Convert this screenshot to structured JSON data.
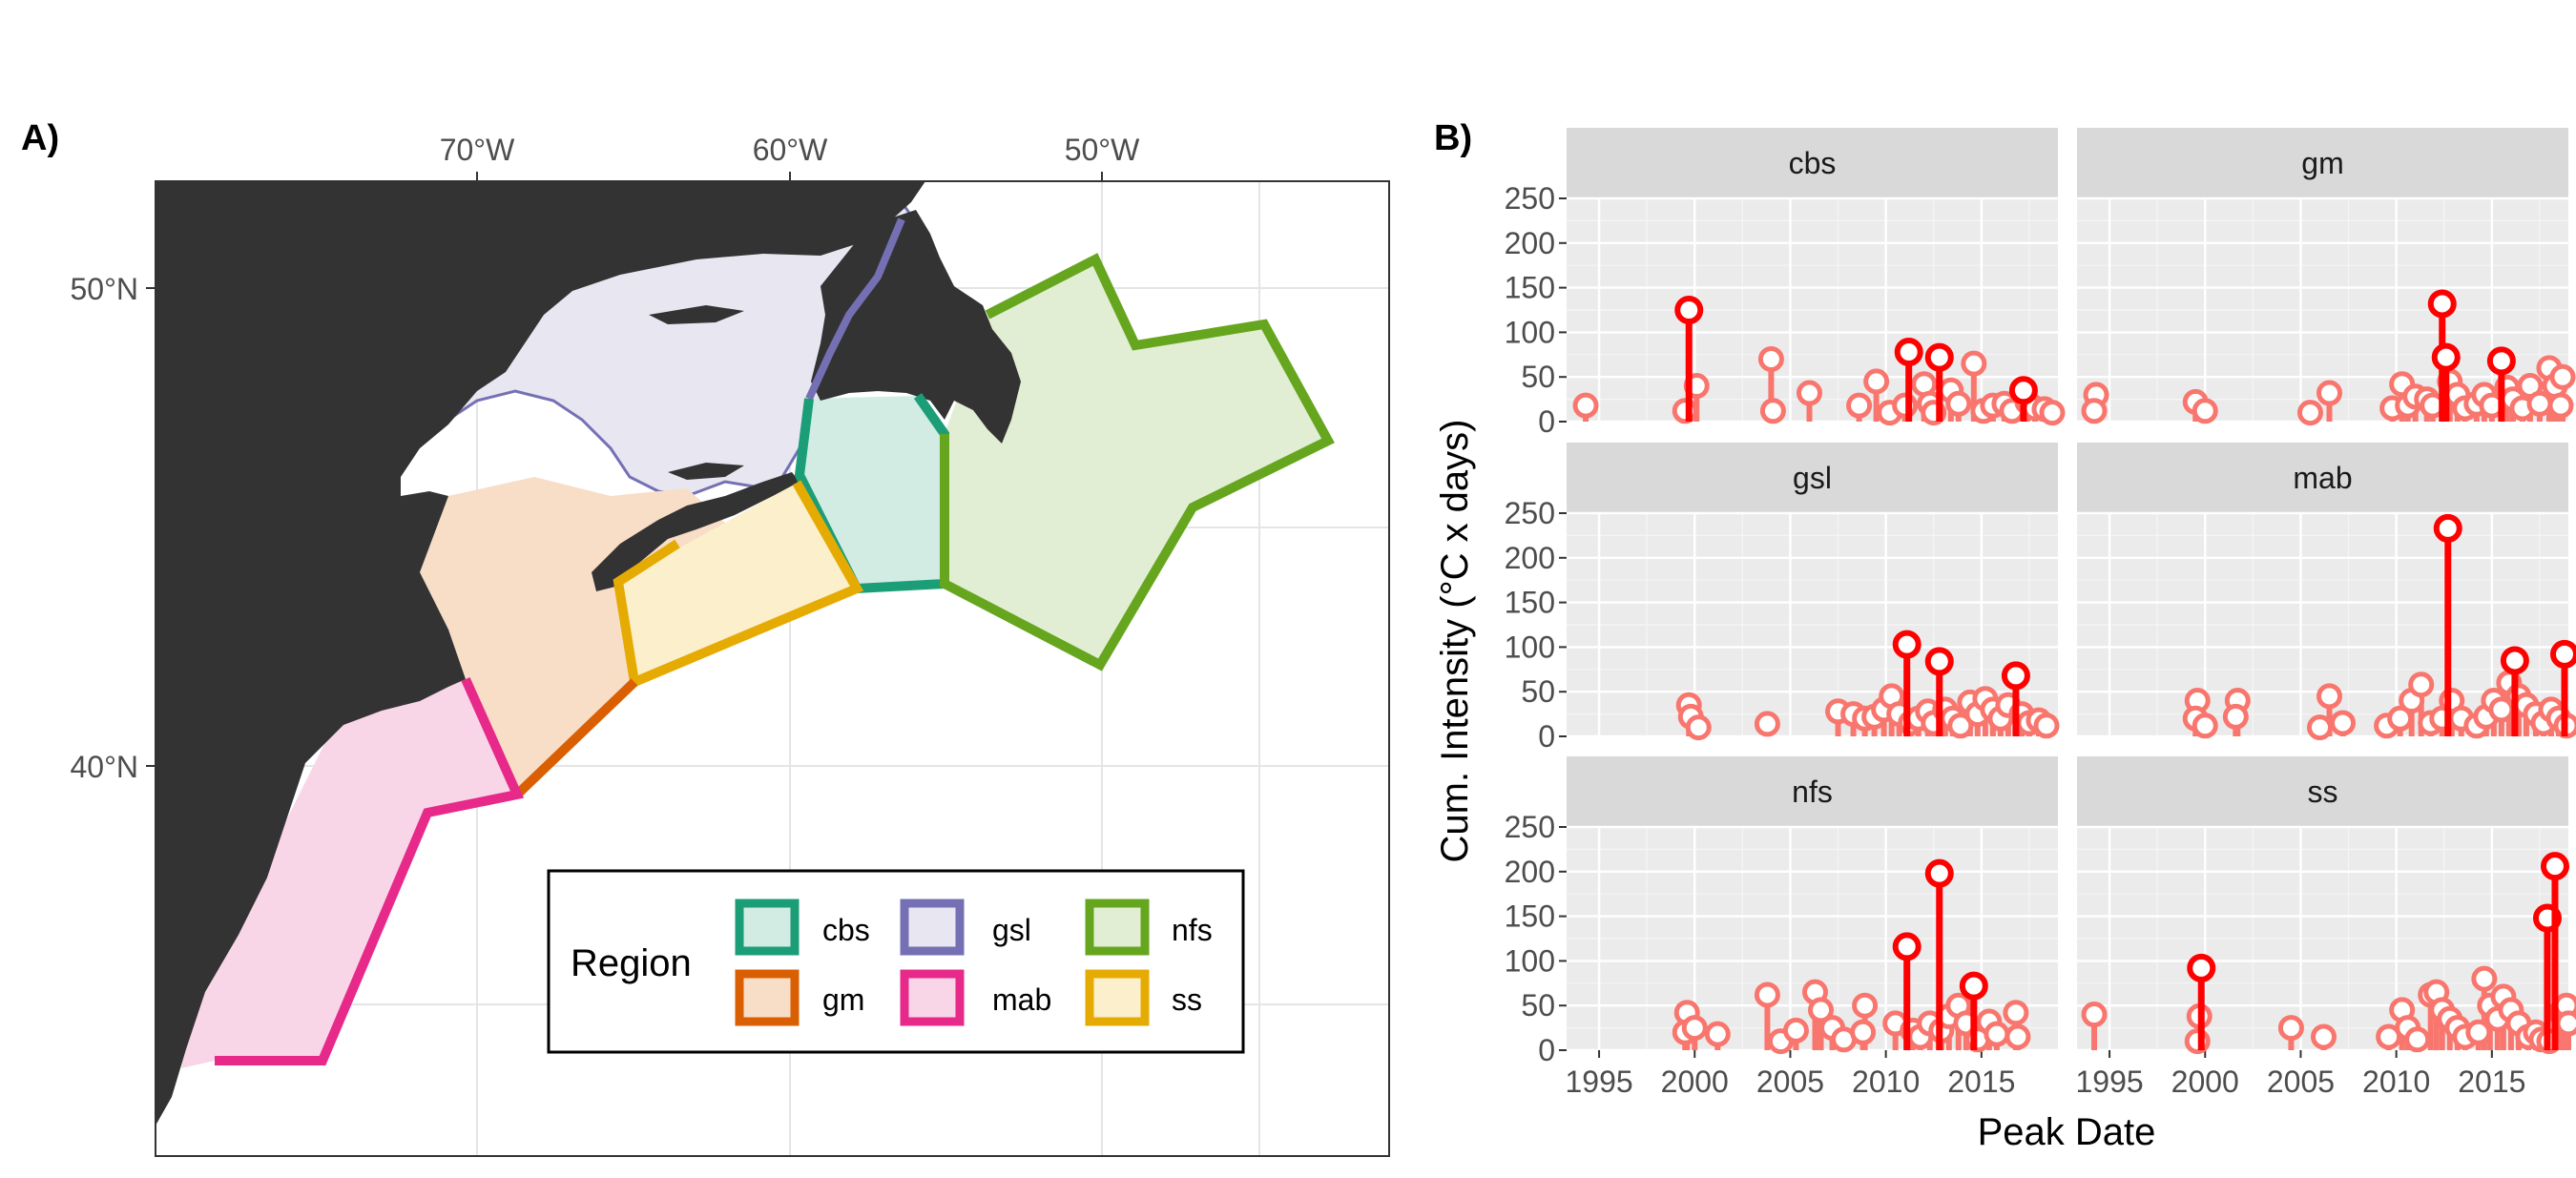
{
  "panel_a": {
    "label": "A)",
    "lon_ticks": [
      "70°W",
      "60°W",
      "50°W"
    ],
    "lat_ticks": [
      "50°N",
      "40°N"
    ],
    "legend": {
      "title": "Region",
      "items": [
        {
          "key": "cbs",
          "label": "cbs",
          "color": "#1B9E77"
        },
        {
          "key": "gsl",
          "label": "gsl",
          "color": "#7570B3"
        },
        {
          "key": "nfs",
          "label": "nfs",
          "color": "#66A61E"
        },
        {
          "key": "gm",
          "label": "gm",
          "color": "#D95F02"
        },
        {
          "key": "mab",
          "label": "mab",
          "color": "#E7298A"
        },
        {
          "key": "ss",
          "label": "ss",
          "color": "#E6AB02"
        }
      ]
    }
  },
  "panel_b": {
    "label": "B)",
    "ylabel": "Cum. Intensity (°C x days)",
    "xlabel": "Peak Date",
    "y_ticks": [
      "0",
      "50",
      "100",
      "150",
      "200",
      "250"
    ],
    "x_ticks": [
      "1995",
      "2000",
      "2005",
      "2010",
      "2015"
    ],
    "facets": [
      "cbs",
      "gm",
      "gsl",
      "mab",
      "nfs",
      "ss"
    ]
  },
  "colors": {
    "land": "#333333",
    "major_event": "#FF0000",
    "minor_event": "#F8766D",
    "facet_strip": "#D9D9D9",
    "facet_bg": "#EBEBEB"
  },
  "chart_data": {
    "type": "scatter",
    "title": "",
    "xlabel": "Peak Date",
    "ylabel": "Cum. Intensity (°C x days)",
    "xlim": [
      1993.3,
      2019
    ],
    "ylim": [
      0,
      250
    ],
    "note": "lollipop points per region facet; major = highlighted events",
    "series": [
      {
        "name": "cbs",
        "major": [
          [
            1999.7,
            125
          ],
          [
            2011.2,
            78
          ],
          [
            2012.8,
            72
          ],
          [
            2017.2,
            35
          ]
        ],
        "minor": [
          [
            1994.3,
            18
          ],
          [
            1999.5,
            12
          ],
          [
            2000.1,
            40
          ],
          [
            2004.0,
            70
          ],
          [
            2004.1,
            12
          ],
          [
            2006.0,
            32
          ],
          [
            2008.6,
            18
          ],
          [
            2009.5,
            45
          ],
          [
            2010.2,
            10
          ],
          [
            2011.0,
            18
          ],
          [
            2012.0,
            42
          ],
          [
            2012.3,
            20
          ],
          [
            2012.5,
            10
          ],
          [
            2013.4,
            35
          ],
          [
            2013.8,
            20
          ],
          [
            2014.6,
            65
          ],
          [
            2015.1,
            12
          ],
          [
            2015.6,
            18
          ],
          [
            2016.2,
            20
          ],
          [
            2016.6,
            12
          ],
          [
            2017.4,
            22
          ],
          [
            2017.8,
            15
          ],
          [
            2018.3,
            14
          ],
          [
            2018.7,
            10
          ]
        ]
      },
      {
        "name": "gm",
        "major": [
          [
            2012.4,
            132
          ],
          [
            2012.6,
            72
          ],
          [
            2015.5,
            68
          ]
        ],
        "minor": [
          [
            1994.3,
            30
          ],
          [
            1994.2,
            12
          ],
          [
            1999.5,
            22
          ],
          [
            2000.0,
            12
          ],
          [
            2005.5,
            10
          ],
          [
            2006.5,
            32
          ],
          [
            2009.8,
            15
          ],
          [
            2010.3,
            42
          ],
          [
            2010.6,
            18
          ],
          [
            2011.0,
            28
          ],
          [
            2011.6,
            25
          ],
          [
            2011.9,
            18
          ],
          [
            2012.8,
            45
          ],
          [
            2013.2,
            30
          ],
          [
            2013.6,
            15
          ],
          [
            2014.2,
            20
          ],
          [
            2014.6,
            30
          ],
          [
            2015.0,
            18
          ],
          [
            2015.8,
            38
          ],
          [
            2016.1,
            25
          ],
          [
            2016.6,
            15
          ],
          [
            2017.0,
            40
          ],
          [
            2017.5,
            20
          ],
          [
            2018.0,
            60
          ],
          [
            2018.3,
            40
          ],
          [
            2018.7,
            50
          ],
          [
            2018.6,
            18
          ]
        ]
      },
      {
        "name": "gsl",
        "major": [
          [
            2011.1,
            103
          ],
          [
            2012.8,
            84
          ],
          [
            2016.8,
            68
          ]
        ],
        "minor": [
          [
            1999.7,
            35
          ],
          [
            1999.8,
            22
          ],
          [
            2000.2,
            10
          ],
          [
            2003.8,
            14
          ],
          [
            2007.5,
            28
          ],
          [
            2008.3,
            25
          ],
          [
            2008.9,
            20
          ],
          [
            2009.4,
            22
          ],
          [
            2009.9,
            30
          ],
          [
            2010.3,
            45
          ],
          [
            2010.7,
            25
          ],
          [
            2011.3,
            15
          ],
          [
            2011.7,
            20
          ],
          [
            2012.2,
            28
          ],
          [
            2012.5,
            15
          ],
          [
            2013.1,
            30
          ],
          [
            2013.5,
            20
          ],
          [
            2013.9,
            12
          ],
          [
            2014.4,
            38
          ],
          [
            2014.8,
            25
          ],
          [
            2015.2,
            42
          ],
          [
            2015.6,
            30
          ],
          [
            2016.0,
            20
          ],
          [
            2016.4,
            35
          ],
          [
            2017.1,
            25
          ],
          [
            2017.5,
            15
          ],
          [
            2018.0,
            18
          ],
          [
            2018.4,
            12
          ]
        ]
      },
      {
        "name": "mab",
        "major": [
          [
            2012.7,
            233
          ],
          [
            2016.2,
            85
          ],
          [
            2018.8,
            92
          ]
        ],
        "minor": [
          [
            1999.6,
            40
          ],
          [
            1999.5,
            20
          ],
          [
            2000.0,
            12
          ],
          [
            2001.7,
            40
          ],
          [
            2001.6,
            22
          ],
          [
            2006.5,
            45
          ],
          [
            2006.0,
            10
          ],
          [
            2007.2,
            15
          ],
          [
            2009.5,
            12
          ],
          [
            2010.2,
            20
          ],
          [
            2010.8,
            40
          ],
          [
            2011.3,
            58
          ],
          [
            2011.8,
            15
          ],
          [
            2012.4,
            20
          ],
          [
            2012.9,
            40
          ],
          [
            2013.4,
            20
          ],
          [
            2014.2,
            12
          ],
          [
            2014.7,
            22
          ],
          [
            2015.1,
            40
          ],
          [
            2015.5,
            30
          ],
          [
            2015.9,
            60
          ],
          [
            2016.4,
            45
          ],
          [
            2016.8,
            35
          ],
          [
            2017.3,
            25
          ],
          [
            2017.7,
            15
          ],
          [
            2018.1,
            30
          ],
          [
            2018.5,
            20
          ],
          [
            2018.9,
            12
          ]
        ]
      },
      {
        "name": "nfs",
        "major": [
          [
            2011.1,
            116
          ],
          [
            2012.8,
            198
          ],
          [
            2014.6,
            72
          ]
        ],
        "minor": [
          [
            1999.6,
            42
          ],
          [
            1999.5,
            20
          ],
          [
            2000.0,
            25
          ],
          [
            2001.2,
            18
          ],
          [
            2003.8,
            62
          ],
          [
            2004.5,
            10
          ],
          [
            2005.3,
            22
          ],
          [
            2006.3,
            65
          ],
          [
            2006.6,
            45
          ],
          [
            2007.2,
            25
          ],
          [
            2007.8,
            12
          ],
          [
            2008.9,
            50
          ],
          [
            2008.8,
            20
          ],
          [
            2010.5,
            30
          ],
          [
            2011.4,
            22
          ],
          [
            2011.8,
            15
          ],
          [
            2012.3,
            30
          ],
          [
            2012.9,
            22
          ],
          [
            2013.3,
            38
          ],
          [
            2013.8,
            50
          ],
          [
            2014.2,
            30
          ],
          [
            2014.8,
            12
          ],
          [
            2015.4,
            32
          ],
          [
            2015.8,
            18
          ],
          [
            2016.8,
            42
          ],
          [
            2016.9,
            15
          ]
        ]
      },
      {
        "name": "ss",
        "major": [
          [
            1999.8,
            92
          ],
          [
            2017.9,
            148
          ],
          [
            2018.3,
            206
          ]
        ],
        "minor": [
          [
            1994.2,
            40
          ],
          [
            1999.7,
            38
          ],
          [
            1999.6,
            10
          ],
          [
            2004.5,
            25
          ],
          [
            2006.2,
            15
          ],
          [
            2009.6,
            15
          ],
          [
            2010.3,
            45
          ],
          [
            2010.6,
            25
          ],
          [
            2011.1,
            12
          ],
          [
            2011.8,
            62
          ],
          [
            2012.1,
            65
          ],
          [
            2012.4,
            45
          ],
          [
            2012.8,
            35
          ],
          [
            2013.2,
            25
          ],
          [
            2013.6,
            15
          ],
          [
            2014.3,
            20
          ],
          [
            2014.6,
            80
          ],
          [
            2014.9,
            50
          ],
          [
            2015.3,
            35
          ],
          [
            2015.6,
            60
          ],
          [
            2016.0,
            45
          ],
          [
            2016.4,
            30
          ],
          [
            2016.9,
            15
          ],
          [
            2017.3,
            20
          ],
          [
            2017.6,
            12
          ],
          [
            2018.0,
            10
          ],
          [
            2018.6,
            42
          ],
          [
            2018.9,
            50
          ],
          [
            2019.0,
            30
          ]
        ]
      }
    ]
  }
}
